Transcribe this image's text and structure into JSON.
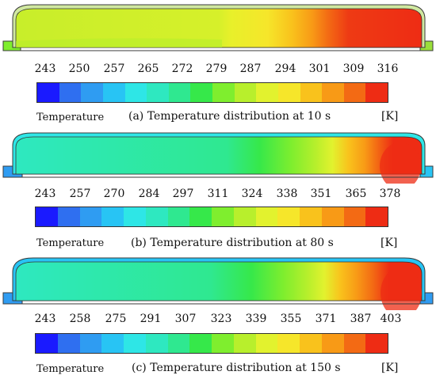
{
  "panels": [
    {
      "caption": "(a) Temperature distribution at 10 s",
      "legend_title": "Temperature",
      "unit": "[K]",
      "ticks": [
        "243",
        "250",
        "257",
        "265",
        "272",
        "279",
        "287",
        "294",
        "301",
        "309",
        "316"
      ]
    },
    {
      "caption": "(b) Temperature distribution at 80 s",
      "legend_title": "Temperature",
      "unit": "[K]",
      "ticks": [
        "243",
        "257",
        "270",
        "284",
        "297",
        "311",
        "324",
        "338",
        "351",
        "365",
        "378"
      ]
    },
    {
      "caption": "(c) Temperature distribution at 150 s",
      "legend_title": "Temperature",
      "unit": "[K]",
      "ticks": [
        "243",
        "258",
        "275",
        "291",
        "307",
        "323",
        "339",
        "355",
        "371",
        "387",
        "403"
      ]
    }
  ],
  "colormap": [
    "#1a1aff",
    "#2f6ff0",
    "#2f9cf2",
    "#28c4f4",
    "#2ee6e6",
    "#2ee8c0",
    "#2fe890",
    "#36e84a",
    "#7fee2e",
    "#b8ef2c",
    "#e2f22e",
    "#f6e62a",
    "#f9c21c",
    "#f89a16",
    "#f36a14",
    "#ee2c14"
  ]
}
